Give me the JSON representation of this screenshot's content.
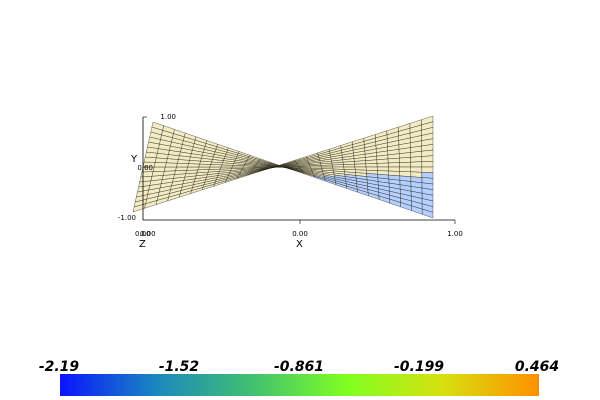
{
  "axes": {
    "y_label": "Y",
    "x_label": "X",
    "z_label": "Z",
    "y_ticks": [
      "1.00",
      "0.00",
      "-1.00"
    ],
    "x_ticks": [
      "0.00",
      "0.00",
      "1.00"
    ],
    "z_ticks": [
      "0.00"
    ]
  },
  "scalar_bar": {
    "labels": [
      "-2.19",
      "-1.52",
      "-0.861",
      "-0.199",
      "0.464"
    ],
    "colors": [
      "#0a14ff",
      "#1a88c0",
      "#40c070",
      "#80ff20",
      "#d8e010",
      "#ff9000"
    ]
  },
  "surface": {
    "face_color": "#f0e8b8",
    "low_color": "#a8c8ff",
    "wire_color": "#1a1a10"
  }
}
